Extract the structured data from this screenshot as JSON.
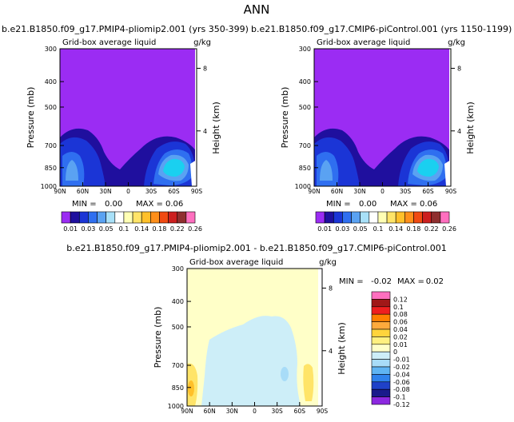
{
  "page_title": "ANN",
  "chart_data": [
    {
      "type": "heatmap",
      "title": "b.e21.B1850.f09_g17.PMIP4-pliomip2.001 (yrs 350-399)",
      "subtitle_left": "Grid-box average liquid",
      "units": "g/kg",
      "ylabel": "Pressure (mb)",
      "ylabel_right": "Height (km)",
      "x_ticks": [
        "90N",
        "60N",
        "30N",
        "0",
        "30S",
        "60S",
        "90S"
      ],
      "y_ticks": [
        "300",
        "400",
        "500",
        "700",
        "850",
        "1000"
      ],
      "height_ticks": [
        "8",
        "4"
      ],
      "min_label": "MIN =",
      "min": "0.00",
      "max_label": "MAX =",
      "max": "0.06",
      "colorbar_labels": [
        "0.01",
        "0.03",
        "0.05",
        "0.1",
        "0.14",
        "0.18",
        "0.22",
        "0.26"
      ]
    },
    {
      "type": "heatmap",
      "title": "b.e21.B1850.f09_g17.CMIP6-piControl.001 (yrs 1150-1199)",
      "subtitle_left": "Grid-box average liquid",
      "units": "g/kg",
      "ylabel": "Pressure (mb)",
      "ylabel_right": "Height (km)",
      "x_ticks": [
        "90N",
        "60N",
        "30N",
        "0",
        "30S",
        "60S",
        "90S"
      ],
      "y_ticks": [
        "300",
        "400",
        "500",
        "700",
        "850",
        "1000"
      ],
      "height_ticks": [
        "8",
        "4"
      ],
      "min_label": "MIN =",
      "min": "0.00",
      "max_label": "MAX =",
      "max": "0.06",
      "colorbar_labels": [
        "0.01",
        "0.03",
        "0.05",
        "0.1",
        "0.14",
        "0.18",
        "0.22",
        "0.26"
      ]
    },
    {
      "type": "heatmap",
      "title": "b.e21.B1850.f09_g17.PMIP4-pliomip2.001 - b.e21.B1850.f09_g17.CMIP6-piControl.001",
      "subtitle_left": "Grid-box average liquid",
      "units": "g/kg",
      "ylabel": "Pressure (mb)",
      "ylabel_right": "Height (km)",
      "x_ticks": [
        "90N",
        "60N",
        "30N",
        "0",
        "30S",
        "60S",
        "90S"
      ],
      "y_ticks": [
        "300",
        "400",
        "500",
        "700",
        "850",
        "1000"
      ],
      "height_ticks": [
        "8",
        "4"
      ],
      "min_label": "MIN =",
      "min": "-0.02",
      "max_label": "MAX =",
      "max": "0.02",
      "colorbar_labels": [
        "0.12",
        "0.1",
        "0.08",
        "0.06",
        "0.04",
        "0.02",
        "0.01",
        "0",
        "-0.01",
        "-0.02",
        "-0.04",
        "-0.06",
        "-0.08",
        "-0.1",
        "-0.12"
      ]
    }
  ],
  "colors": {
    "abs_levels": [
      "#9b2cf3",
      "#1f0f9e",
      "#1b35d6",
      "#2f6ff0",
      "#5aa2f2",
      "#a8e0f8",
      "#ffffff",
      "#ffffb4",
      "#ffe468",
      "#ffc02a",
      "#ff8f1a",
      "#f04a12",
      "#cc1f1f",
      "#8f2f2f",
      "#ff6fbf"
    ],
    "diff_levels": [
      "#ff6fbf",
      "#a01818",
      "#ee1f1f",
      "#ff7f00",
      "#ffaa3c",
      "#ffd43c",
      "#fff080",
      "#ffffc8",
      "#cdeef8",
      "#a8dcf8",
      "#5fb4f3",
      "#2f82ec",
      "#1f41c8",
      "#1a1a8c",
      "#8c28e0"
    ],
    "purple_bg": "#9b2cf3"
  }
}
